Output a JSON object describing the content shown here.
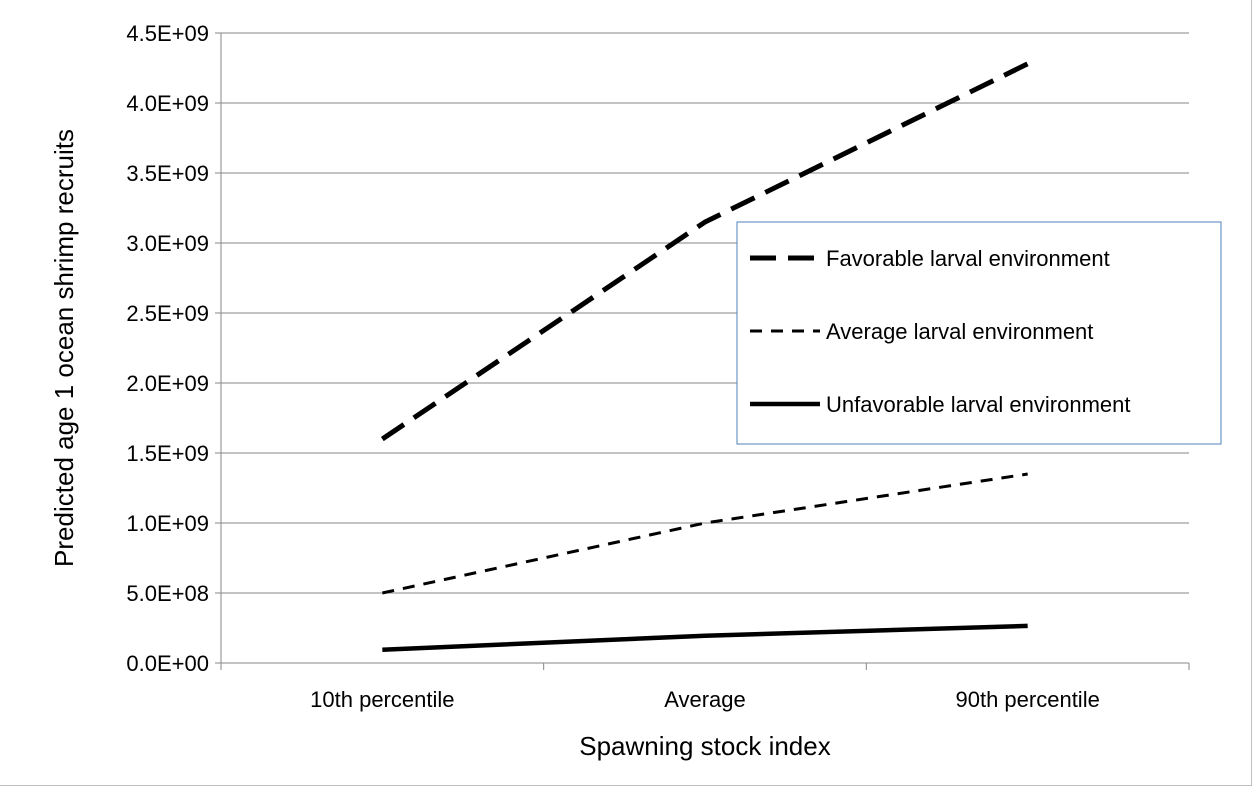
{
  "chart_data": {
    "type": "line",
    "title": "",
    "xlabel": "Spawning stock index",
    "ylabel": "Predicted age 1 ocean shrimp recruits",
    "categories": [
      "10th percentile",
      "Average",
      "90th percentile"
    ],
    "ylim": [
      0,
      4500000000
    ],
    "yticks": [
      "0.0E+00",
      "5.0E+08",
      "1.0E+09",
      "1.5E+09",
      "2.0E+09",
      "2.5E+09",
      "3.0E+09",
      "3.5E+09",
      "4.0E+09",
      "4.5E+09"
    ],
    "grid": true,
    "legend_position": "right",
    "series": [
      {
        "name": "Favorable larval environment",
        "style": "long-dash",
        "color": "#000000",
        "values": [
          1600000000,
          3150000000,
          4280000000
        ]
      },
      {
        "name": "Average larval environment",
        "style": "short-dash",
        "color": "#000000",
        "values": [
          500000000,
          1000000000,
          1350000000
        ]
      },
      {
        "name": "Unfavorable larval environment",
        "style": "solid",
        "color": "#000000",
        "values": [
          95000000,
          195000000,
          265000000
        ]
      }
    ]
  },
  "colors": {
    "gridline": "#878787",
    "legend_border": "#4f81bd",
    "line": "#000000"
  }
}
